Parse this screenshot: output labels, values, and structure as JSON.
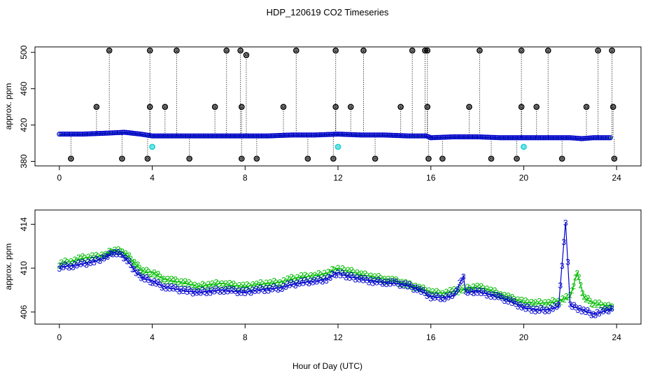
{
  "title": "HDP_120619  CO2 Timeseries",
  "xlabel": "Hour of Day (UTC)",
  "colors": {
    "primary": "#0000cc",
    "secondary": "#00bb00",
    "outlier": "#000000",
    "flagged": "#00cccc"
  },
  "chart_data": [
    {
      "type": "scatter",
      "panel": "top",
      "ylabel": "approx. ppm",
      "xlim": [
        -1.05,
        25.05
      ],
      "ylim": [
        375,
        506
      ],
      "xticks": [
        0,
        4,
        8,
        12,
        16,
        20,
        24
      ],
      "yticks": [
        380,
        420,
        460,
        500
      ],
      "baseline_series": {
        "name": "3",
        "x": [
          0,
          1,
          2,
          2.8,
          3.5,
          4,
          5,
          6,
          7,
          8,
          9,
          10,
          11,
          12,
          13,
          14,
          15,
          15.8,
          16,
          17,
          18,
          19,
          20,
          21,
          22,
          22.5,
          23,
          23.8
        ],
        "y": [
          410,
          410,
          411,
          412,
          410,
          408,
          408,
          408,
          408,
          408,
          408,
          409,
          409,
          410,
          409,
          409,
          408,
          408,
          406,
          407,
          407,
          406,
          406,
          406,
          406,
          405,
          406,
          406
        ]
      },
      "outliers_high": {
        "x": [
          2.15,
          3.9,
          5.05,
          7.2,
          7.8,
          8.05,
          10.2,
          11.9,
          13.1,
          15.2,
          15.75,
          15.85,
          18.1,
          19.9,
          21.05,
          23.2,
          23.8
        ],
        "y": [
          502,
          502,
          502,
          502,
          502,
          497,
          502,
          502,
          502,
          502,
          502,
          502,
          502,
          502,
          502,
          502,
          502
        ]
      },
      "outliers_mid": {
        "x": [
          1.6,
          3.9,
          4.55,
          6.7,
          7.85,
          9.65,
          11.9,
          12.55,
          14.7,
          15.85,
          17.65,
          19.9,
          20.55,
          22.7,
          23.85
        ],
        "y": [
          440,
          440,
          440,
          440,
          440,
          440,
          440,
          440,
          440,
          440,
          440,
          440,
          440,
          440,
          440
        ]
      },
      "outliers_low": {
        "x": [
          0.5,
          2.7,
          3.8,
          5.6,
          7.85,
          8.5,
          10.7,
          11.8,
          13.6,
          15.9,
          16.5,
          18.6,
          19.7,
          21.65,
          23.9
        ],
        "y": [
          383,
          383,
          383,
          383,
          383,
          383,
          383,
          383,
          383,
          383,
          383,
          383,
          383,
          383,
          383
        ]
      },
      "flagged_points": {
        "x": [
          4.0,
          12.0,
          20.0
        ],
        "y": [
          396,
          396,
          396
        ]
      }
    },
    {
      "type": "line",
      "panel": "bottom",
      "ylabel": "approx. ppm",
      "xlim": [
        -1.05,
        25.05
      ],
      "ylim": [
        404.9,
        415.3
      ],
      "xticks": [
        0,
        4,
        8,
        12,
        16,
        20,
        24
      ],
      "yticks": [
        406,
        410,
        414
      ],
      "series": [
        {
          "name": "2",
          "x": [
            0,
            0.5,
            1,
            1.5,
            2,
            2.3,
            2.7,
            3,
            3.3,
            3.6,
            4,
            4.5,
            5,
            5.5,
            6,
            6.5,
            7,
            7.5,
            8,
            8.5,
            9,
            9.5,
            10,
            10.5,
            11,
            11.5,
            12,
            12.2,
            12.5,
            13,
            13.5,
            14,
            14.5,
            15,
            15.5,
            16,
            16.5,
            17,
            17.5,
            18,
            18.5,
            19,
            19.5,
            20,
            20.5,
            21,
            21.5,
            22,
            22.3,
            22.6,
            23,
            23.5,
            23.8
          ],
          "y": [
            410.4,
            410.6,
            410.9,
            411.0,
            411.2,
            411.6,
            411.5,
            411.0,
            410.3,
            409.7,
            409.6,
            409.0,
            408.8,
            408.6,
            408.3,
            408.5,
            408.6,
            408.4,
            408.3,
            408.5,
            408.6,
            408.7,
            409.0,
            409.2,
            409.3,
            409.5,
            410.0,
            409.8,
            409.7,
            409.4,
            409.2,
            409.0,
            408.8,
            408.5,
            408.2,
            407.8,
            407.7,
            407.9,
            408.1,
            408.3,
            408.0,
            407.6,
            407.2,
            406.9,
            406.8,
            406.8,
            407.0,
            407.4,
            409.6,
            407.3,
            406.8,
            406.6,
            406.5
          ]
        },
        {
          "name": "3",
          "x": [
            0,
            0.5,
            1,
            1.5,
            2,
            2.3,
            2.7,
            3,
            3.3,
            3.6,
            4,
            4.5,
            5,
            5.5,
            6,
            6.5,
            7,
            7.5,
            8,
            8.5,
            9,
            9.5,
            10,
            10.5,
            11,
            11.5,
            12,
            12.2,
            12.5,
            13,
            13.5,
            14,
            14.5,
            15,
            15.5,
            16,
            16.5,
            17,
            17.4,
            17.5,
            18,
            18.5,
            19,
            19.5,
            20,
            20.5,
            21,
            21.5,
            21.8,
            22,
            22.5,
            23,
            23.5,
            23.8
          ],
          "y": [
            410.1,
            410.2,
            410.4,
            410.6,
            411.0,
            411.4,
            411.2,
            410.5,
            409.6,
            409.1,
            408.8,
            408.3,
            408.1,
            407.9,
            407.8,
            407.9,
            408.0,
            407.9,
            407.8,
            408.0,
            408.1,
            408.2,
            408.5,
            408.7,
            408.8,
            409.0,
            409.6,
            409.4,
            409.2,
            409.0,
            408.8,
            408.7,
            408.6,
            408.4,
            408.0,
            407.4,
            407.3,
            407.5,
            409.3,
            407.8,
            407.9,
            407.6,
            407.3,
            406.9,
            406.4,
            406.2,
            406.2,
            406.5,
            414.2,
            406.6,
            406.2,
            405.8,
            406.1,
            406.3
          ]
        }
      ]
    }
  ]
}
